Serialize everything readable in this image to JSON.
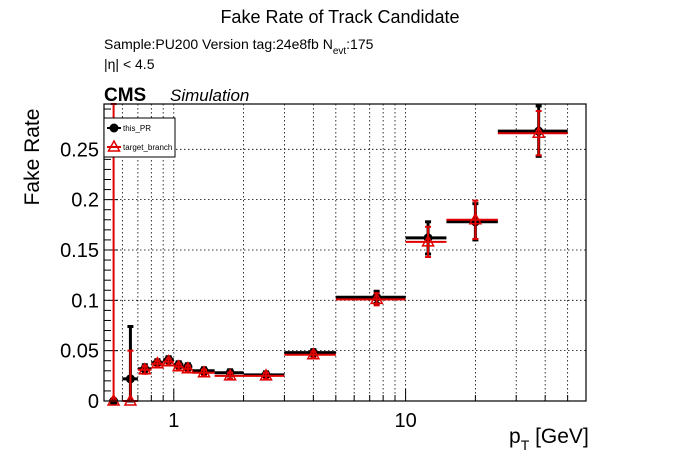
{
  "chart_data": {
    "type": "scatter",
    "title": "Fake Rate of Track Candidate",
    "info_line": "Sample:PU200   Version tag:24e8fb  N",
    "info_sub": "evt",
    "info_value": ":175",
    "cut_label": "|η| < 4.5",
    "experiment": "CMS",
    "experiment_sub": "Simulation",
    "xlabel_main": "p",
    "xlabel_sub": "T",
    "xlabel_unit": " [GeV]",
    "ylabel": "Fake Rate",
    "x_scale": "log",
    "xlim": [
      0.5,
      60
    ],
    "ylim": [
      0,
      0.295
    ],
    "grid": true,
    "legend_position": "top-left",
    "x_tick_labels": [
      {
        "value": 1,
        "label": "1"
      },
      {
        "value": 10,
        "label": "10"
      }
    ],
    "y_tick_labels": [
      {
        "value": 0,
        "label": "0"
      },
      {
        "value": 0.05,
        "label": "0.05"
      },
      {
        "value": 0.1,
        "label": "0.1"
      },
      {
        "value": 0.15,
        "label": "0.15"
      },
      {
        "value": 0.2,
        "label": "0.2"
      },
      {
        "value": 0.25,
        "label": "0.25"
      }
    ],
    "series": [
      {
        "name": "this_PR",
        "color": "#000000",
        "marker": "filled-circle",
        "points": [
          {
            "x": 0.55,
            "xlo": 0.53,
            "xhi": 0.57,
            "y": 0.0,
            "elo": 0.0,
            "ehi": 0.0
          },
          {
            "x": 0.65,
            "xlo": 0.6,
            "xhi": 0.7,
            "y": 0.022,
            "elo": 0.022,
            "ehi": 0.052
          },
          {
            "x": 0.75,
            "xlo": 0.7,
            "xhi": 0.8,
            "y": 0.032,
            "elo": 0.004,
            "ehi": 0.004
          },
          {
            "x": 0.85,
            "xlo": 0.8,
            "xhi": 0.9,
            "y": 0.038,
            "elo": 0.003,
            "ehi": 0.003
          },
          {
            "x": 0.95,
            "xlo": 0.9,
            "xhi": 1.0,
            "y": 0.041,
            "elo": 0.003,
            "ehi": 0.003
          },
          {
            "x": 1.05,
            "xlo": 1.0,
            "xhi": 1.1,
            "y": 0.036,
            "elo": 0.003,
            "ehi": 0.003
          },
          {
            "x": 1.15,
            "xlo": 1.1,
            "xhi": 1.2,
            "y": 0.034,
            "elo": 0.003,
            "ehi": 0.003
          },
          {
            "x": 1.35,
            "xlo": 1.2,
            "xhi": 1.5,
            "y": 0.03,
            "elo": 0.003,
            "ehi": 0.003
          },
          {
            "x": 1.75,
            "xlo": 1.5,
            "xhi": 2.0,
            "y": 0.028,
            "elo": 0.003,
            "ehi": 0.003
          },
          {
            "x": 2.5,
            "xlo": 2.0,
            "xhi": 3.0,
            "y": 0.026,
            "elo": 0.003,
            "ehi": 0.003
          },
          {
            "x": 4.0,
            "xlo": 3.0,
            "xhi": 5.0,
            "y": 0.048,
            "elo": 0.003,
            "ehi": 0.003
          },
          {
            "x": 7.5,
            "xlo": 5.0,
            "xhi": 10.0,
            "y": 0.103,
            "elo": 0.006,
            "ehi": 0.006
          },
          {
            "x": 12.5,
            "xlo": 10.0,
            "xhi": 15.0,
            "y": 0.162,
            "elo": 0.016,
            "ehi": 0.016
          },
          {
            "x": 20.0,
            "xlo": 15.0,
            "xhi": 25.0,
            "y": 0.178,
            "elo": 0.018,
            "ehi": 0.018
          },
          {
            "x": 37.5,
            "xlo": 25.0,
            "xhi": 50.0,
            "y": 0.268,
            "elo": 0.025,
            "ehi": 0.025
          }
        ]
      },
      {
        "name": "target_branch",
        "color": "#e00000",
        "marker": "open-triangle",
        "points": [
          {
            "x": 0.55,
            "xlo": 0.53,
            "xhi": 0.57,
            "y": 0.0,
            "elo": 0.0,
            "ehi": 0.3
          },
          {
            "x": 0.65,
            "xlo": 0.6,
            "xhi": 0.7,
            "y": 0.0,
            "elo": 0.0,
            "ehi": 0.05
          },
          {
            "x": 0.75,
            "xlo": 0.7,
            "xhi": 0.8,
            "y": 0.031,
            "elo": 0.004,
            "ehi": 0.004
          },
          {
            "x": 0.85,
            "xlo": 0.8,
            "xhi": 0.9,
            "y": 0.037,
            "elo": 0.003,
            "ehi": 0.003
          },
          {
            "x": 0.95,
            "xlo": 0.9,
            "xhi": 1.0,
            "y": 0.039,
            "elo": 0.003,
            "ehi": 0.003
          },
          {
            "x": 1.05,
            "xlo": 1.0,
            "xhi": 1.1,
            "y": 0.034,
            "elo": 0.003,
            "ehi": 0.003
          },
          {
            "x": 1.15,
            "xlo": 1.1,
            "xhi": 1.2,
            "y": 0.032,
            "elo": 0.003,
            "ehi": 0.003
          },
          {
            "x": 1.35,
            "xlo": 1.2,
            "xhi": 1.5,
            "y": 0.028,
            "elo": 0.003,
            "ehi": 0.003
          },
          {
            "x": 1.75,
            "xlo": 1.5,
            "xhi": 2.0,
            "y": 0.025,
            "elo": 0.003,
            "ehi": 0.003
          },
          {
            "x": 2.5,
            "xlo": 2.0,
            "xhi": 3.0,
            "y": 0.025,
            "elo": 0.003,
            "ehi": 0.003
          },
          {
            "x": 4.0,
            "xlo": 3.0,
            "xhi": 5.0,
            "y": 0.046,
            "elo": 0.003,
            "ehi": 0.003
          },
          {
            "x": 7.5,
            "xlo": 5.0,
            "xhi": 10.0,
            "y": 0.101,
            "elo": 0.006,
            "ehi": 0.006
          },
          {
            "x": 12.5,
            "xlo": 10.0,
            "xhi": 15.0,
            "y": 0.158,
            "elo": 0.015,
            "ehi": 0.015
          },
          {
            "x": 20.0,
            "xlo": 15.0,
            "xhi": 25.0,
            "y": 0.18,
            "elo": 0.019,
            "ehi": 0.019
          },
          {
            "x": 37.5,
            "xlo": 25.0,
            "xhi": 50.0,
            "y": 0.266,
            "elo": 0.022,
            "ehi": 0.022
          }
        ]
      }
    ]
  }
}
